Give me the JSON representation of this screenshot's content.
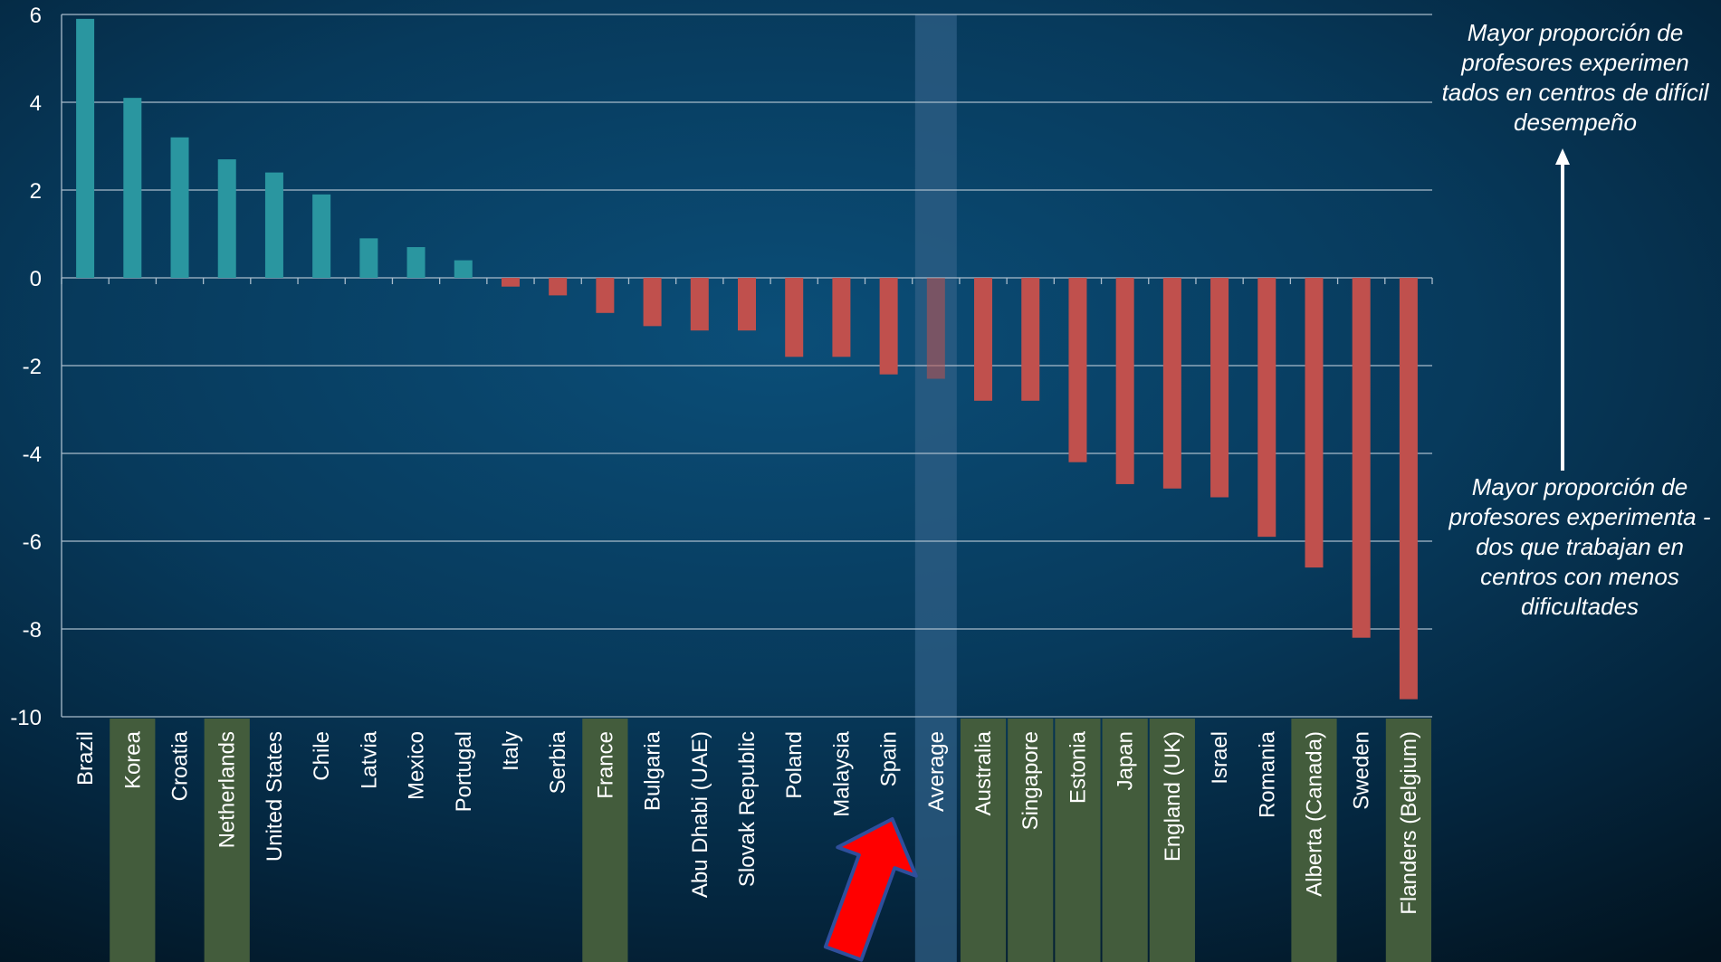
{
  "chart_data": {
    "type": "bar",
    "title": "",
    "xlabel": "",
    "ylabel": "",
    "ylim": [
      -10,
      6
    ],
    "yticks": [
      6,
      4,
      2,
      0,
      -2,
      -4,
      -6,
      -8,
      -10
    ],
    "grid": true,
    "categories": [
      "Brazil",
      "Korea",
      "Croatia",
      "Netherlands",
      "United States",
      "Chile",
      "Latvia",
      "Mexico",
      "Portugal",
      "Italy",
      "Serbia",
      "France",
      "Bulgaria",
      "Abu Dhabi (UAE)",
      "Slovak Republic",
      "Poland",
      "Malaysia",
      "Spain",
      "Average",
      "Australia",
      "Singapore",
      "Estonia",
      "Japan",
      "England (UK)",
      "Israel",
      "Romania",
      "Alberta (Canada)",
      "Sweden",
      "Flanders (Belgium)"
    ],
    "values": [
      5.9,
      4.1,
      3.2,
      2.7,
      2.4,
      1.9,
      0.9,
      0.7,
      0.4,
      -0.2,
      -0.4,
      -0.8,
      -1.1,
      -1.2,
      -1.2,
      -1.8,
      -1.8,
      -2.2,
      -2.3,
      -2.8,
      -2.8,
      -4.2,
      -4.7,
      -4.8,
      -5.0,
      -5.9,
      -6.6,
      -8.2,
      -9.6
    ],
    "highlighted_categories": [
      "Korea",
      "Netherlands",
      "France",
      "Australia",
      "Singapore",
      "Estonia",
      "Japan",
      "England (UK)",
      "Alberta (Canada)",
      "Flanders (Belgium)"
    ],
    "average_category": "Average",
    "pointer_category": "Spain",
    "colors": {
      "positive": "#2a96a0",
      "negative": "#c0504d",
      "highlight_label_bg": "#435c3c",
      "average_band": "#2f5f86",
      "arrow": "#ff0000",
      "arrow_outline": "#2f4f9c"
    }
  },
  "annotations": {
    "top": "Mayor proporción de profesores experimen tados en centros de difícil desempeño",
    "bottom": "Mayor proporción de profesores experimenta -dos que trabajan en centros con menos dificultades"
  }
}
